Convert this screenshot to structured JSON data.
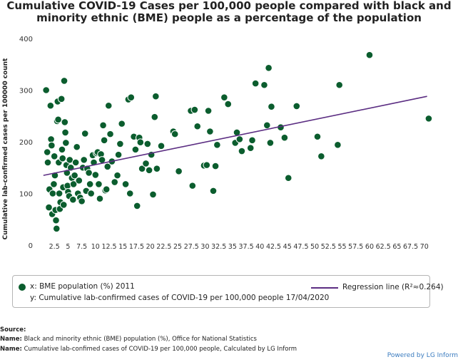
{
  "chart_data": {
    "type": "scatter",
    "title_line1": "Cumulative COVID-19 Cases per 100,000 people compared with black and",
    "title_line2": "minority ethnic (BME) people as a percentage of the population",
    "xlabel": "",
    "ylabel": "Cumulative lab-confirmed cases per 100000 count",
    "xlim": [
      0,
      72.5
    ],
    "ylim": [
      0,
      400
    ],
    "x_ticks": [
      "2.5",
      "5",
      "7.5",
      "10",
      "12.5",
      "15",
      "17.5",
      "20",
      "22.5",
      "25",
      "27.5",
      "30",
      "32.5",
      "35",
      "37.5",
      "40",
      "42.5",
      "45",
      "47.5",
      "50",
      "52.5",
      "55",
      "57.5",
      "60",
      "62.5",
      "65",
      "67.5",
      "70"
    ],
    "y_ticks": [
      "0",
      "100",
      "200",
      "300",
      "400"
    ],
    "grid": false,
    "legend_position": "bottom",
    "series": [
      {
        "name": "x: BME population (%) 2011",
        "points": [
          [
            1,
            300
          ],
          [
            1.2,
            180
          ],
          [
            1.3,
            160
          ],
          [
            1.5,
            73
          ],
          [
            1.6,
            108
          ],
          [
            1.8,
            270
          ],
          [
            1.9,
            205
          ],
          [
            2,
            193
          ],
          [
            2.1,
            60
          ],
          [
            2.2,
            100
          ],
          [
            2.4,
            118
          ],
          [
            2.5,
            172
          ],
          [
            2.6,
            135
          ],
          [
            2.7,
            68
          ],
          [
            2.8,
            48
          ],
          [
            2.9,
            32
          ],
          [
            3,
            240
          ],
          [
            3.1,
            278
          ],
          [
            3.2,
            243
          ],
          [
            3.3,
            160
          ],
          [
            3.4,
            100
          ],
          [
            3.5,
            70
          ],
          [
            3.6,
            83
          ],
          [
            3.8,
            283
          ],
          [
            3.9,
            185
          ],
          [
            4,
            168
          ],
          [
            4.1,
            112
          ],
          [
            4.2,
            78
          ],
          [
            4.3,
            318
          ],
          [
            4.4,
            238
          ],
          [
            4.5,
            218
          ],
          [
            4.6,
            198
          ],
          [
            4.7,
            155
          ],
          [
            4.8,
            140
          ],
          [
            4.9,
            115
          ],
          [
            5,
            103
          ],
          [
            5.2,
            95
          ],
          [
            5.3,
            165
          ],
          [
            5.5,
            150
          ],
          [
            5.7,
            130
          ],
          [
            5.9,
            88
          ],
          [
            6,
            118
          ],
          [
            6.2,
            135
          ],
          [
            6.4,
            160
          ],
          [
            6.6,
            190
          ],
          [
            6.8,
            100
          ],
          [
            7,
            125
          ],
          [
            7.2,
            92
          ],
          [
            7.5,
            85
          ],
          [
            7.7,
            150
          ],
          [
            7.9,
            165
          ],
          [
            8.1,
            216
          ],
          [
            8.3,
            105
          ],
          [
            8.5,
            148
          ],
          [
            8.8,
            140
          ],
          [
            9,
            118
          ],
          [
            9.2,
            100
          ],
          [
            9.5,
            174
          ],
          [
            9.7,
            160
          ],
          [
            10,
            136
          ],
          [
            10.2,
            178
          ],
          [
            10.4,
            180
          ],
          [
            10.6,
            118
          ],
          [
            10.8,
            90
          ],
          [
            11,
            176
          ],
          [
            11.2,
            165
          ],
          [
            11.4,
            232
          ],
          [
            11.6,
            203
          ],
          [
            11.8,
            106
          ],
          [
            12,
            108
          ],
          [
            12.2,
            152
          ],
          [
            12.4,
            270
          ],
          [
            12.7,
            215
          ],
          [
            13,
            162
          ],
          [
            13.5,
            122
          ],
          [
            14,
            135
          ],
          [
            14.2,
            175
          ],
          [
            14.5,
            196
          ],
          [
            14.8,
            235
          ],
          [
            15.5,
            118
          ],
          [
            16,
            282
          ],
          [
            16.3,
            100
          ],
          [
            16.5,
            286
          ],
          [
            17,
            210
          ],
          [
            17.3,
            185
          ],
          [
            17.6,
            76
          ],
          [
            18,
            208
          ],
          [
            18.2,
            199
          ],
          [
            18.5,
            148
          ],
          [
            19.2,
            158
          ],
          [
            19.5,
            196
          ],
          [
            19.8,
            145
          ],
          [
            20.2,
            175
          ],
          [
            20.5,
            98
          ],
          [
            20.8,
            248
          ],
          [
            21,
            288
          ],
          [
            21.2,
            148
          ],
          [
            22,
            192
          ],
          [
            24.2,
            220
          ],
          [
            24.5,
            215
          ],
          [
            25.2,
            143
          ],
          [
            27.4,
            260
          ],
          [
            27.7,
            115
          ],
          [
            28.1,
            262
          ],
          [
            28.6,
            230
          ],
          [
            29.8,
            154
          ],
          [
            30.3,
            155
          ],
          [
            30.6,
            260
          ],
          [
            30.9,
            220
          ],
          [
            31.5,
            105
          ],
          [
            31.9,
            153
          ],
          [
            32.2,
            194
          ],
          [
            33.5,
            286
          ],
          [
            34.2,
            273
          ],
          [
            35.5,
            198
          ],
          [
            35.8,
            218
          ],
          [
            36.3,
            205
          ],
          [
            36.7,
            182
          ],
          [
            38.3,
            188
          ],
          [
            38.6,
            203
          ],
          [
            39.2,
            313
          ],
          [
            40.8,
            310
          ],
          [
            41.3,
            232
          ],
          [
            41.6,
            343
          ],
          [
            41.9,
            198
          ],
          [
            42.1,
            268
          ],
          [
            43.8,
            228
          ],
          [
            44.5,
            208
          ],
          [
            45.2,
            130
          ],
          [
            46.7,
            269
          ],
          [
            50.5,
            210
          ],
          [
            51.2,
            172
          ],
          [
            54.2,
            194
          ],
          [
            54.5,
            310
          ],
          [
            60,
            368
          ],
          [
            70.8,
            245
          ]
        ]
      }
    ],
    "regression": {
      "name": "Regression line (R²≈0.264)",
      "x": [
        0.5,
        70.5
      ],
      "y": [
        135,
        288
      ]
    },
    "legend_y_label": "y: Cumulative lab-confirmed cases of COVID-19 per 100,000 people 17/04/2020"
  },
  "source": {
    "heading": "Source:",
    "name_label": "Name:",
    "line1": "Black and minority ethnic (BME) population (%), Office for National Statistics",
    "line2": "Cumulative lab-confimed cases of COVID-19 per 100,000 people, Calculated by LG Inform"
  },
  "powered_by": "Powered by LG Inform",
  "colors": {
    "points": "#0b5d2e",
    "regression": "#5b2d82"
  }
}
